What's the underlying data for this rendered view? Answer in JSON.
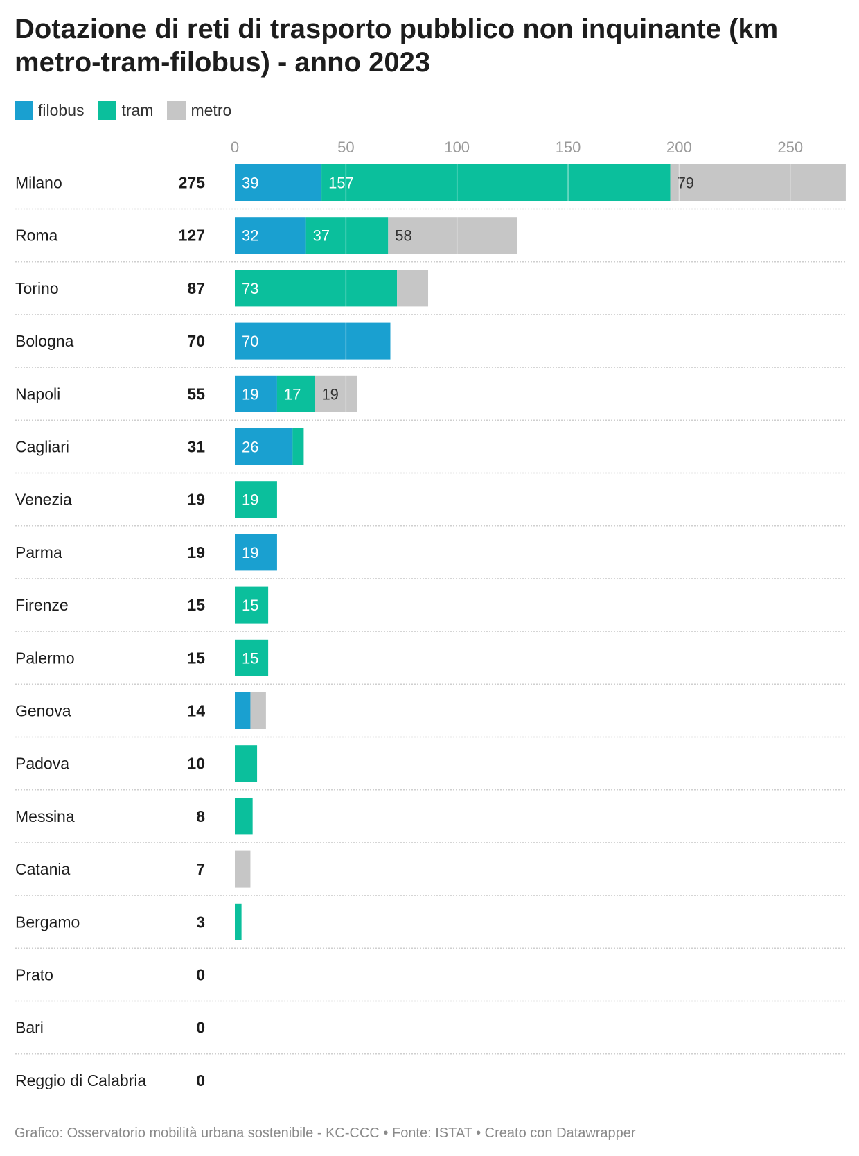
{
  "title": "Dotazione di reti di trasporto pubblico non inquinante (km metro-tram-filobus) - anno 2023",
  "legend": [
    {
      "label": "filobus",
      "color": "#1aa0d0"
    },
    {
      "label": "tram",
      "color": "#0bbf9c"
    },
    {
      "label": "metro",
      "color": "#c6c6c6"
    }
  ],
  "footer": "Grafico: Osservatorio mobilità urbana sostenibile - KC-CCC • Fonte: ISTAT • Creato con Datawrapper",
  "chart_data": {
    "type": "bar",
    "orientation": "horizontal",
    "stacked": true,
    "xlim": [
      0,
      275
    ],
    "x_ticks": [
      0,
      50,
      100,
      150,
      200,
      250
    ],
    "grid": true,
    "legend_position": "top-left",
    "categories": [
      "Milano",
      "Roma",
      "Torino",
      "Bologna",
      "Napoli",
      "Cagliari",
      "Venezia",
      "Parma",
      "Firenze",
      "Palermo",
      "Genova",
      "Padova",
      "Messina",
      "Catania",
      "Bergamo",
      "Prato",
      "Bari",
      "Reggio di Calabria"
    ],
    "totals": [
      275,
      127,
      87,
      70,
      55,
      31,
      19,
      19,
      15,
      15,
      14,
      10,
      8,
      7,
      3,
      0,
      0,
      0
    ],
    "series": [
      {
        "name": "filobus",
        "color": "#1aa0d0",
        "values": [
          39,
          32,
          0,
          70,
          19,
          26,
          0,
          19,
          0,
          0,
          7,
          0,
          0,
          0,
          0,
          0,
          0,
          0
        ]
      },
      {
        "name": "tram",
        "color": "#0bbf9c",
        "values": [
          157,
          37,
          73,
          0,
          17,
          5,
          19,
          0,
          15,
          15,
          0,
          10,
          8,
          0,
          3,
          0,
          0,
          0
        ]
      },
      {
        "name": "metro",
        "color": "#c6c6c6",
        "values": [
          79,
          58,
          14,
          0,
          19,
          0,
          0,
          0,
          0,
          0,
          7,
          0,
          0,
          7,
          0,
          0,
          0,
          0
        ]
      }
    ],
    "data_labels": [
      [
        "39",
        "157",
        "79"
      ],
      [
        "32",
        "37",
        "58"
      ],
      [
        "",
        "73",
        ""
      ],
      [
        "70",
        "",
        ""
      ],
      [
        "19",
        "17",
        "19"
      ],
      [
        "26",
        "",
        ""
      ],
      [
        "",
        "19",
        ""
      ],
      [
        "19",
        "",
        ""
      ],
      [
        "",
        "15",
        ""
      ],
      [
        "",
        "15",
        ""
      ],
      [
        "",
        "",
        ""
      ],
      [
        "",
        "",
        ""
      ],
      [
        "",
        "",
        ""
      ],
      [
        "",
        "",
        ""
      ],
      [
        "",
        "",
        ""
      ],
      [
        "",
        "",
        ""
      ],
      [
        "",
        "",
        ""
      ],
      [
        "",
        "",
        ""
      ]
    ]
  }
}
